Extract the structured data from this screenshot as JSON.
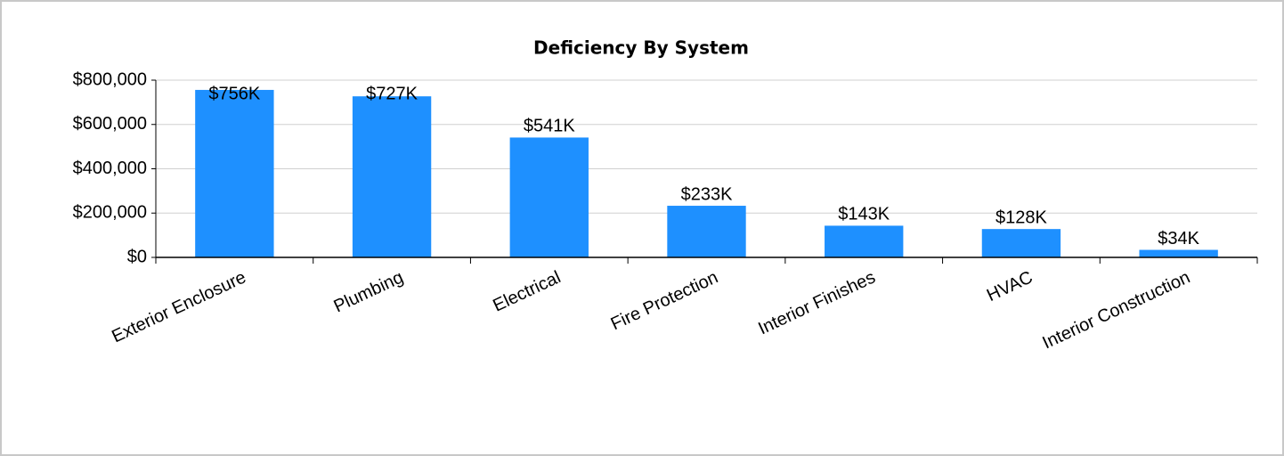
{
  "chart_data": {
    "type": "bar",
    "title": "Deficiency By System",
    "categories": [
      "Exterior Enclosure",
      "Plumbing",
      "Electrical",
      "Fire Protection",
      "Interior Finishes",
      "HVAC",
      "Interior Construction"
    ],
    "values": [
      756000,
      727000,
      541000,
      233000,
      143000,
      128000,
      34000
    ],
    "value_labels": [
      "$756K",
      "$727K",
      "$541K",
      "$233K",
      "$143K",
      "$128K",
      "$34K"
    ],
    "color": "#1e90ff",
    "ylim": [
      0,
      800000
    ],
    "yticks": [
      {
        "value": 0,
        "label": "$0"
      },
      {
        "value": 200000,
        "label": "$200,000"
      },
      {
        "value": 400000,
        "label": "$400,000"
      },
      {
        "value": 600000,
        "label": "$600,000"
      },
      {
        "value": 800000,
        "label": "$800,000"
      }
    ],
    "grid": true
  }
}
